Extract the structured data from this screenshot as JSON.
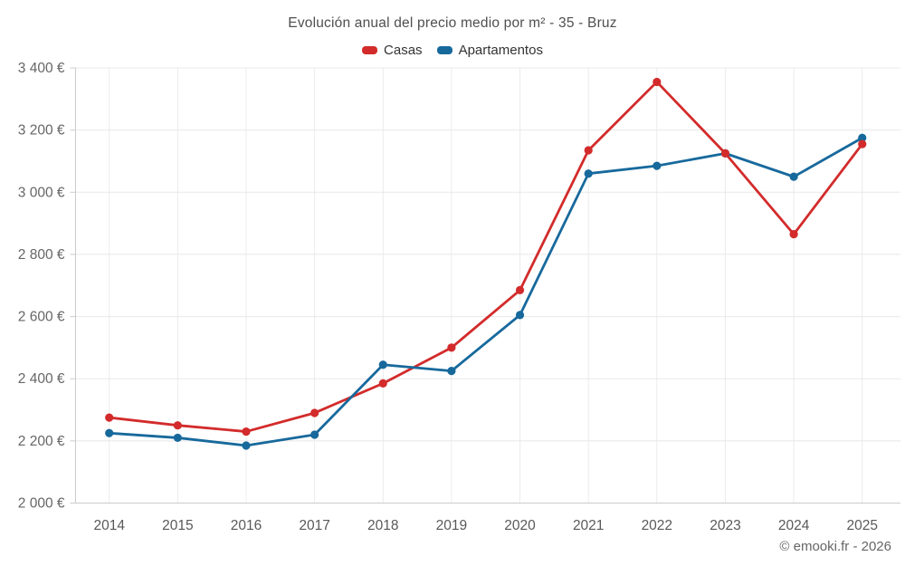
{
  "title": "Evolución anual del precio medio por m² - 35 - Bruz",
  "footer": "© emooki.fr - 2026",
  "legend": {
    "items": [
      {
        "label": "Casas",
        "color": "#d32b2b"
      },
      {
        "label": "Apartamentos",
        "color": "#17699c"
      }
    ]
  },
  "chart_data": {
    "type": "line",
    "title": "Evolución anual del precio medio por m² - 35 - Bruz",
    "categories": [
      "2014",
      "2015",
      "2016",
      "2017",
      "2018",
      "2019",
      "2020",
      "2021",
      "2022",
      "2023",
      "2024",
      "2025"
    ],
    "series": [
      {
        "name": "Casas",
        "color": "#d32b2b",
        "values": [
          2275,
          2250,
          2230,
          2290,
          2385,
          2500,
          2685,
          3135,
          3355,
          3125,
          2865,
          3155
        ]
      },
      {
        "name": "Apartamentos",
        "color": "#17699c",
        "values": [
          2225,
          2210,
          2185,
          2220,
          2445,
          2425,
          2605,
          3060,
          3085,
          3125,
          3050,
          3175
        ]
      }
    ],
    "xlabel": "",
    "ylabel": "",
    "ylim": [
      2000,
      3400
    ],
    "ytick_step": 200,
    "ytick_labels": [
      "2 000 €",
      "2 200 €",
      "2 400 €",
      "2 600 €",
      "2 800 €",
      "3 000 €",
      "3 200 €",
      "3 400 €"
    ],
    "grid": true,
    "legend_position": "top",
    "colors": {
      "grid_h": "#e8e8e8",
      "grid_v": "#ececec",
      "axis": "#cccccc",
      "tick_text": "#666666",
      "x_tick_text": "#595959"
    }
  }
}
